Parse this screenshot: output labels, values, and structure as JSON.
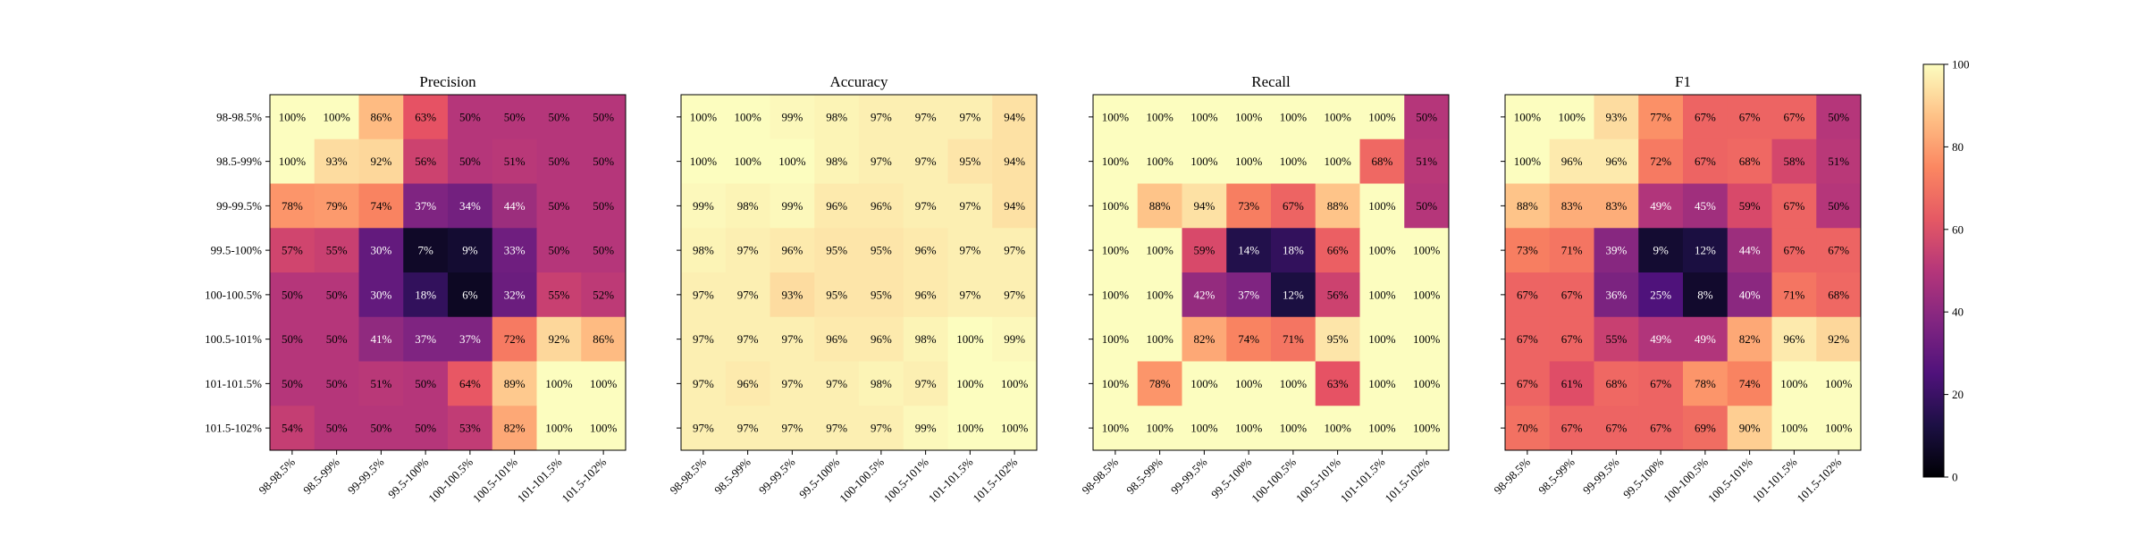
{
  "chart_data": {
    "type": "heatmap",
    "categories": [
      "98-98.5%",
      "98.5-99%",
      "99-99.5%",
      "99.5-100%",
      "100-100.5%",
      "100.5-101%",
      "101-101.5%",
      "101.5-102%"
    ],
    "colormap": "magma",
    "color_range": [
      0,
      100
    ],
    "colorbar": {
      "ticks": [
        0,
        20,
        40,
        60,
        80,
        100
      ]
    },
    "panels": [
      {
        "title": "Precision",
        "values": [
          [
            100,
            100,
            86,
            63,
            50,
            50,
            50,
            50
          ],
          [
            100,
            93,
            92,
            56,
            50,
            51,
            50,
            50
          ],
          [
            78,
            79,
            74,
            37,
            34,
            44,
            50,
            50
          ],
          [
            57,
            55,
            30,
            7,
            9,
            33,
            50,
            50
          ],
          [
            50,
            50,
            30,
            18,
            6,
            32,
            55,
            52
          ],
          [
            50,
            50,
            41,
            37,
            37,
            72,
            92,
            86
          ],
          [
            50,
            50,
            51,
            50,
            64,
            89,
            100,
            100
          ],
          [
            54,
            50,
            50,
            50,
            53,
            82,
            100,
            100
          ]
        ]
      },
      {
        "title": "Accuracy",
        "values": [
          [
            100,
            100,
            99,
            98,
            97,
            97,
            97,
            94
          ],
          [
            100,
            100,
            100,
            98,
            97,
            97,
            95,
            94
          ],
          [
            99,
            98,
            99,
            96,
            96,
            97,
            97,
            94
          ],
          [
            98,
            97,
            96,
            95,
            95,
            96,
            97,
            97
          ],
          [
            97,
            97,
            93,
            95,
            95,
            96,
            97,
            97
          ],
          [
            97,
            97,
            97,
            96,
            96,
            98,
            100,
            99
          ],
          [
            97,
            96,
            97,
            97,
            98,
            97,
            100,
            100
          ],
          [
            97,
            97,
            97,
            97,
            97,
            99,
            100,
            100
          ]
        ]
      },
      {
        "title": "Recall",
        "values": [
          [
            100,
            100,
            100,
            100,
            100,
            100,
            100,
            50
          ],
          [
            100,
            100,
            100,
            100,
            100,
            100,
            68,
            51
          ],
          [
            100,
            88,
            94,
            73,
            67,
            88,
            100,
            50
          ],
          [
            100,
            100,
            59,
            14,
            18,
            66,
            100,
            100
          ],
          [
            100,
            100,
            42,
            37,
            12,
            56,
            100,
            100
          ],
          [
            100,
            100,
            82,
            74,
            71,
            95,
            100,
            100
          ],
          [
            100,
            78,
            100,
            100,
            100,
            63,
            100,
            100
          ],
          [
            100,
            100,
            100,
            100,
            100,
            100,
            100,
            100
          ]
        ]
      },
      {
        "title": "F1",
        "values": [
          [
            100,
            100,
            93,
            77,
            67,
            67,
            67,
            50
          ],
          [
            100,
            96,
            96,
            72,
            67,
            68,
            58,
            51
          ],
          [
            88,
            83,
            83,
            49,
            45,
            59,
            67,
            50
          ],
          [
            73,
            71,
            39,
            9,
            12,
            44,
            67,
            67
          ],
          [
            67,
            67,
            36,
            25,
            8,
            40,
            71,
            68
          ],
          [
            67,
            67,
            55,
            49,
            49,
            82,
            96,
            92
          ],
          [
            67,
            61,
            68,
            67,
            78,
            74,
            100,
            100
          ],
          [
            70,
            67,
            67,
            67,
            69,
            90,
            100,
            100
          ]
        ]
      }
    ]
  }
}
